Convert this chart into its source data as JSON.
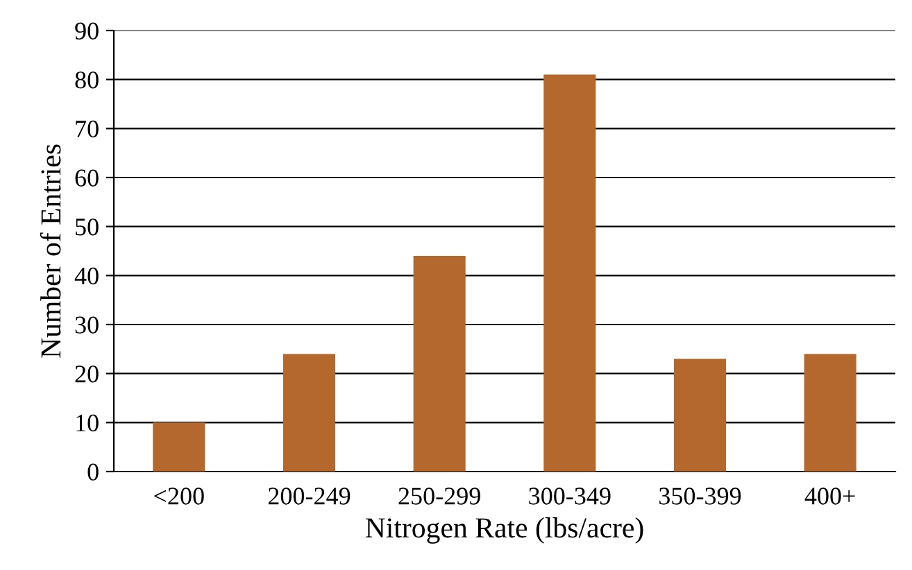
{
  "chart_data": {
    "type": "bar",
    "xlabel": "Nitrogen Rate (lbs/acre)",
    "ylabel": "Number of Entries",
    "categories": [
      "<200",
      "200-249",
      "250-299",
      "300-349",
      "350-399",
      "400+"
    ],
    "values": [
      10,
      24,
      44,
      81,
      23,
      24
    ],
    "color": "#b5682d",
    "ylim": [
      0,
      90
    ],
    "yticks": [
      0,
      10,
      20,
      30,
      40,
      50,
      60,
      70,
      80,
      90
    ],
    "grid": "y",
    "legend": false
  }
}
